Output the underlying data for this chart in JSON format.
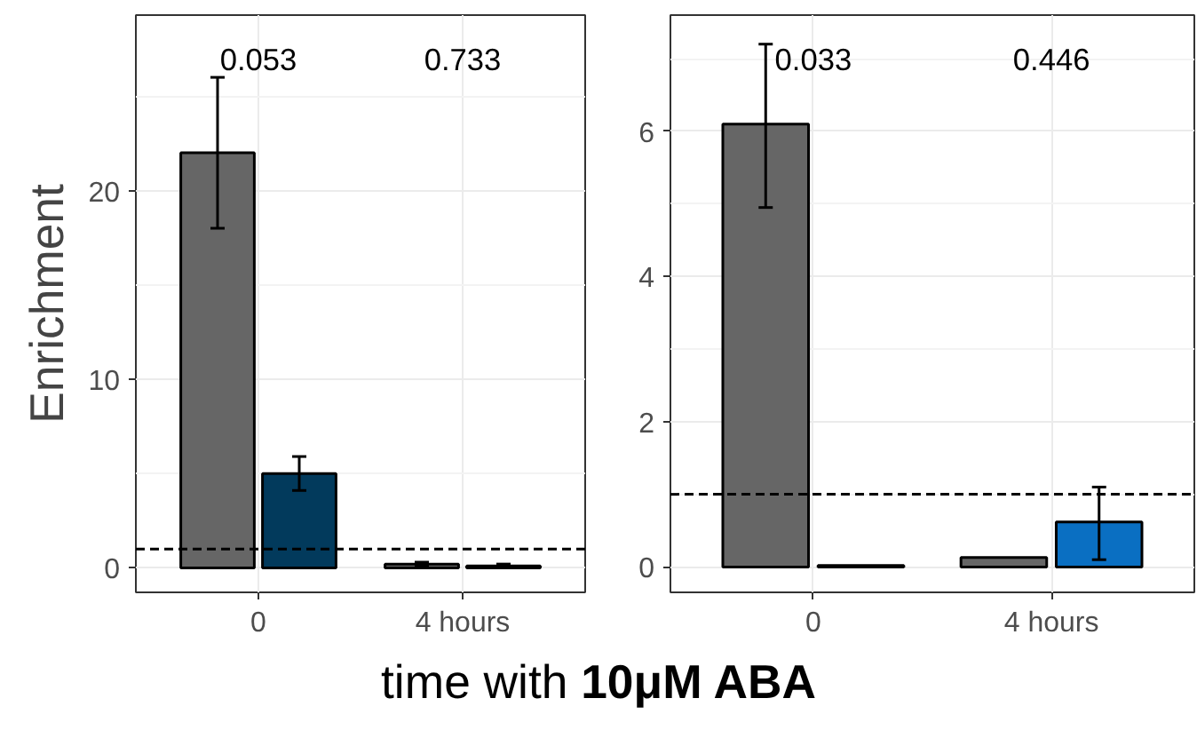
{
  "chart_data": [
    {
      "type": "bar",
      "categories": [
        "0",
        "4 hours"
      ],
      "ylabel": "Enrichment",
      "xlabel": "time with 10μM ABA",
      "ylim": [
        -1.3,
        29.3
      ],
      "yticks": [
        0,
        10,
        20
      ],
      "grid": true,
      "series": [
        {
          "color": "#666666",
          "values": [
            22.0,
            0.2
          ],
          "errors": [
            [
              18.0,
              26.0
            ],
            [
              0.1,
              0.3
            ]
          ]
        },
        {
          "color": "#023a5c",
          "values": [
            5.0,
            0.1
          ],
          "errors": [
            [
              4.1,
              5.9
            ],
            [
              0.1,
              0.2
            ]
          ]
        }
      ],
      "ref_lines": [
        {
          "axis": "y",
          "value": 1,
          "line_style": "dashed",
          "color": "#000000"
        }
      ],
      "annotations": [
        "0.053",
        "0.733"
      ]
    },
    {
      "type": "bar",
      "categories": [
        "0",
        "4 hours"
      ],
      "ylim": [
        -0.35,
        7.6
      ],
      "yticks": [
        0,
        2,
        4,
        6
      ],
      "grid": true,
      "series": [
        {
          "color": "#666666",
          "values": [
            6.1,
            0.13
          ],
          "errors": [
            [
              4.95,
              7.2
            ],
            null
          ]
        },
        {
          "color": "#0a6fc2",
          "values": [
            0.02,
            0.62
          ],
          "errors": [
            null,
            [
              0.1,
              1.1
            ]
          ]
        }
      ],
      "ref_lines": [
        {
          "axis": "y",
          "value": 1,
          "line_style": "dashed",
          "color": "#000000"
        }
      ],
      "annotations": [
        "0.033",
        "0.446"
      ]
    }
  ]
}
